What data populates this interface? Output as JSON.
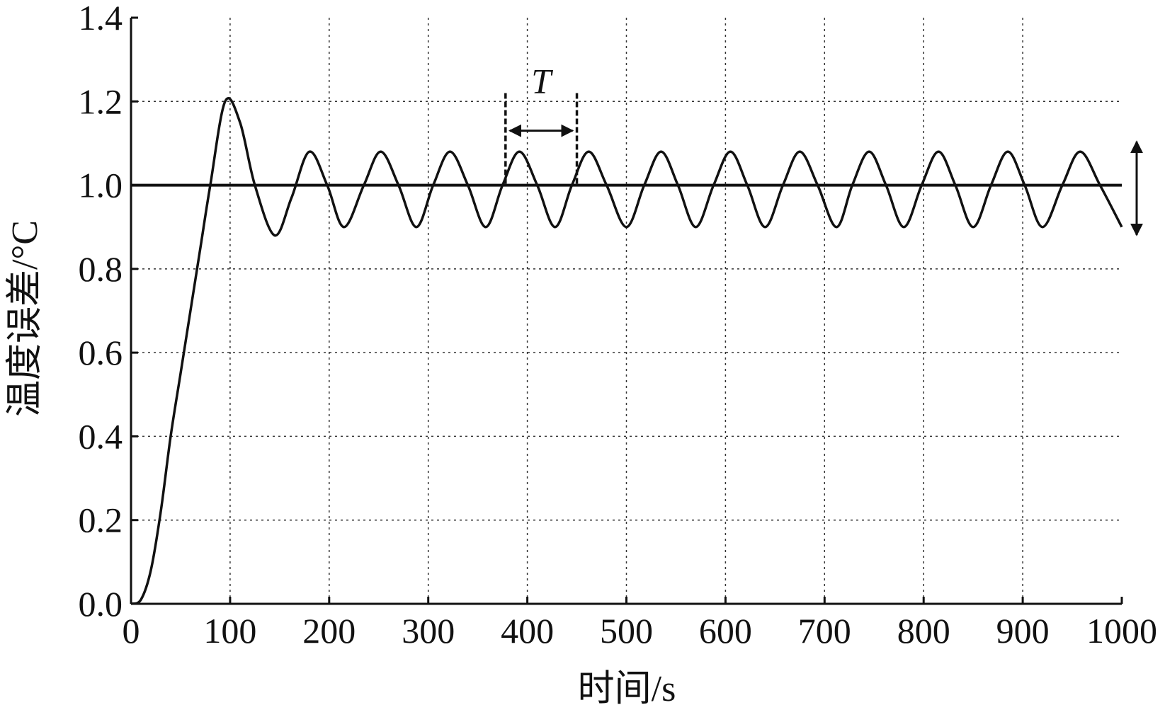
{
  "chart_data": {
    "type": "line",
    "x_label": "时间/s",
    "y_label": "温度误差/°C",
    "xlim": [
      0,
      1000
    ],
    "xticks": [
      0,
      100,
      200,
      300,
      400,
      500,
      600,
      700,
      800,
      900,
      1000
    ],
    "ylim": [
      0,
      1.4
    ],
    "yticks": [
      {
        "value": 0,
        "label": "0.0"
      },
      0.2,
      0.4,
      0.6,
      0.8,
      {
        "value": 1,
        "label": "1.0"
      },
      1.2,
      1.4
    ],
    "grid": true,
    "reference_line": 1,
    "period_label": "T",
    "period_markers": [
      378,
      450
    ],
    "x": [
      0,
      10,
      20,
      30,
      40,
      50,
      60,
      70,
      80,
      95,
      110,
      125,
      145,
      162,
      180,
      198,
      215,
      235,
      252,
      270,
      288,
      305,
      322,
      340,
      358,
      375,
      392,
      410,
      428,
      445,
      462,
      480,
      500,
      518,
      535,
      552,
      570,
      588,
      605,
      622,
      640,
      658,
      675,
      693,
      712,
      728,
      745,
      762,
      780,
      798,
      815,
      832,
      850,
      868,
      885,
      902,
      920,
      940,
      958,
      978,
      1000
    ],
    "series": [
      {
        "color": "#111111",
        "values": [
          0,
          0.01,
          0.08,
          0.22,
          0.4,
          0.55,
          0.7,
          0.85,
          1.0,
          1.2,
          1.15,
          1.0,
          0.88,
          0.97,
          1.08,
          1.0,
          0.9,
          1.0,
          1.08,
          1.0,
          0.9,
          1.0,
          1.08,
          1.0,
          0.9,
          1.0,
          1.08,
          1.0,
          0.9,
          1.0,
          1.08,
          1.0,
          0.9,
          1.0,
          1.08,
          1.0,
          0.9,
          1.0,
          1.08,
          1.0,
          0.9,
          1.0,
          1.08,
          1.0,
          0.9,
          1.0,
          1.08,
          1.0,
          0.9,
          1.0,
          1.08,
          1.0,
          0.9,
          1.0,
          1.08,
          1.0,
          0.9,
          1.0,
          1.08,
          1.0,
          0.9
        ]
      }
    ]
  }
}
